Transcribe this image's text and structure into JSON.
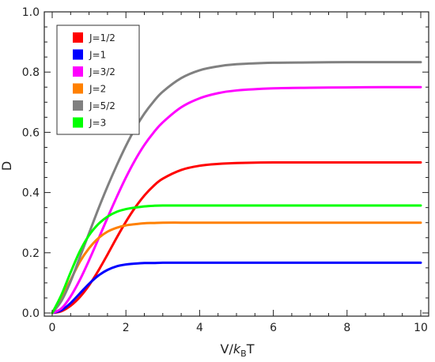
{
  "chart_data": {
    "type": "line",
    "title": "",
    "xlabel": {
      "prefix": "V/",
      "k": "k",
      "sub": "B",
      "suffix": "T"
    },
    "ylabel": "D",
    "xlim": [
      0,
      10
    ],
    "ylim": [
      0,
      1.0
    ],
    "xticks": [
      0,
      2,
      4,
      6,
      8,
      10
    ],
    "xtick_labels": [
      "0",
      "2",
      "4",
      "6",
      "8",
      "10"
    ],
    "yticks": [
      0.0,
      0.2,
      0.4,
      0.6,
      0.8,
      1.0
    ],
    "ytick_labels": [
      "0.0",
      "0.2",
      "0.4",
      "0.6",
      "0.8",
      "1.0"
    ],
    "grid": false,
    "legend_position": "top-left",
    "x": [
      0,
      0.25,
      0.5,
      0.75,
      1,
      1.25,
      1.5,
      1.75,
      2,
      2.25,
      2.5,
      2.75,
      3,
      3.5,
      4,
      4.5,
      5,
      6,
      7,
      8,
      9,
      10
    ],
    "series": [
      {
        "name": "J=1/2",
        "color": "#ff0000",
        "values": [
          0,
          0.006,
          0.024,
          0.053,
          0.092,
          0.14,
          0.194,
          0.25,
          0.303,
          0.35,
          0.39,
          0.422,
          0.446,
          0.475,
          0.489,
          0.495,
          0.498,
          0.5,
          0.5,
          0.5,
          0.5,
          0.5
        ]
      },
      {
        "name": "J=1",
        "color": "#0000ff",
        "values": [
          0,
          0.009,
          0.033,
          0.065,
          0.097,
          0.124,
          0.143,
          0.155,
          0.161,
          0.164,
          0.166,
          0.166,
          0.167,
          0.167,
          0.167,
          0.167,
          0.167,
          0.167,
          0.167,
          0.167,
          0.167,
          0.167
        ]
      },
      {
        "name": "J=3/2",
        "color": "#ff00ff",
        "values": [
          0,
          0.015,
          0.055,
          0.11,
          0.175,
          0.245,
          0.316,
          0.385,
          0.45,
          0.508,
          0.558,
          0.599,
          0.633,
          0.683,
          0.713,
          0.73,
          0.739,
          0.746,
          0.748,
          0.749,
          0.75,
          0.75
        ]
      },
      {
        "name": "J=2",
        "color": "#ff8000",
        "values": [
          0,
          0.05,
          0.11,
          0.17,
          0.215,
          0.248,
          0.27,
          0.283,
          0.291,
          0.295,
          0.298,
          0.299,
          0.3,
          0.3,
          0.3,
          0.3,
          0.3,
          0.3,
          0.3,
          0.3,
          0.3,
          0.3
        ]
      },
      {
        "name": "J=5/2",
        "color": "#808080",
        "values": [
          0,
          0.04,
          0.105,
          0.185,
          0.265,
          0.345,
          0.42,
          0.49,
          0.555,
          0.613,
          0.662,
          0.702,
          0.735,
          0.78,
          0.806,
          0.819,
          0.826,
          0.831,
          0.832,
          0.833,
          0.833,
          0.833
        ]
      },
      {
        "name": "J=3",
        "color": "#00ff00",
        "values": [
          0,
          0.06,
          0.135,
          0.205,
          0.258,
          0.295,
          0.32,
          0.336,
          0.345,
          0.35,
          0.354,
          0.356,
          0.357,
          0.357,
          0.357,
          0.357,
          0.357,
          0.357,
          0.357,
          0.357,
          0.357,
          0.357
        ]
      }
    ]
  }
}
